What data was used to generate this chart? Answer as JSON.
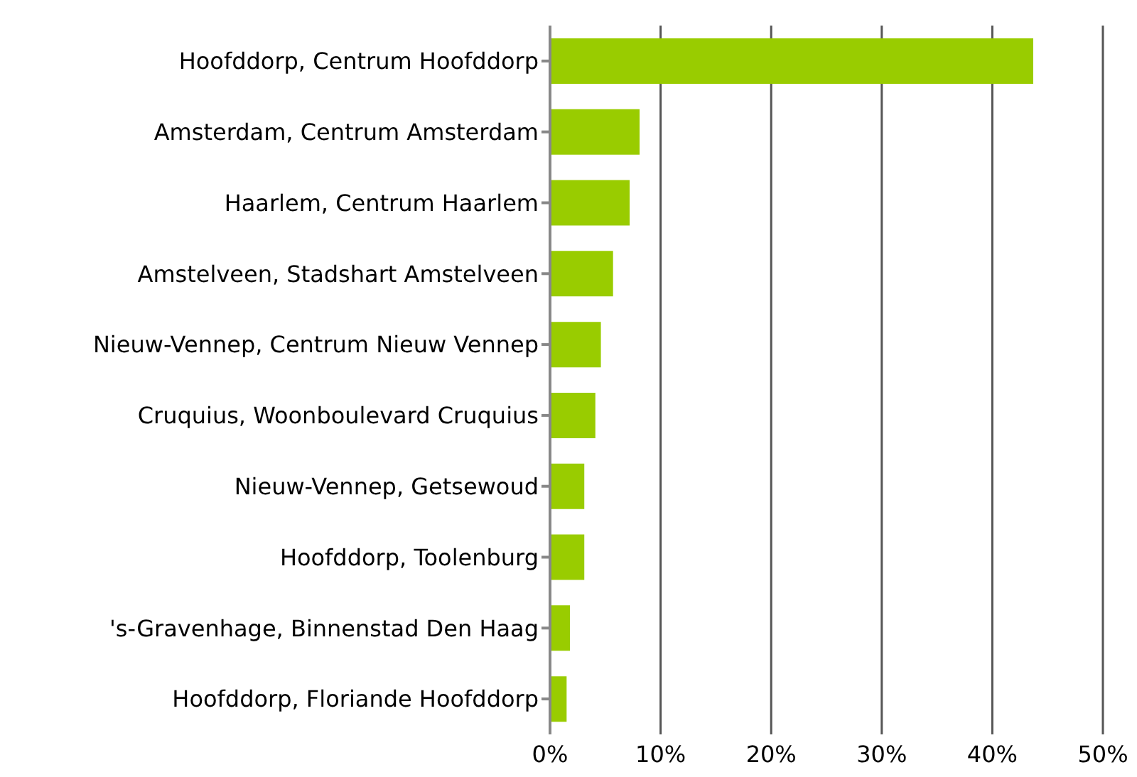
{
  "chart_data": {
    "type": "bar",
    "orientation": "horizontal",
    "categories": [
      "Hoofddorp, Centrum Hoofddorp",
      "Amsterdam, Centrum Amsterdam",
      "Haarlem, Centrum Haarlem",
      "Amstelveen, Stadshart Amstelveen",
      "Nieuw-Vennep, Centrum Nieuw Vennep",
      "Cruquius, Woonboulevard Cruquius",
      "Nieuw-Vennep, Getsewoud",
      "Hoofddorp, Toolenburg",
      "'s-Gravenhage, Binnenstad Den Haag",
      "Hoofddorp, Floriande Hoofddorp"
    ],
    "values": [
      43.7,
      8.1,
      7.2,
      5.7,
      4.6,
      4.1,
      3.1,
      3.1,
      1.8,
      1.5
    ],
    "color": "#99cc00",
    "xlim": [
      0,
      50
    ],
    "xticks": [
      {
        "value": 0,
        "label": "0%"
      },
      {
        "value": 10,
        "label": "10%"
      },
      {
        "value": 20,
        "label": "20%"
      },
      {
        "value": 30,
        "label": "30%"
      },
      {
        "value": 40,
        "label": "40%"
      },
      {
        "value": 50,
        "label": "50%"
      }
    ],
    "grid": "x"
  }
}
